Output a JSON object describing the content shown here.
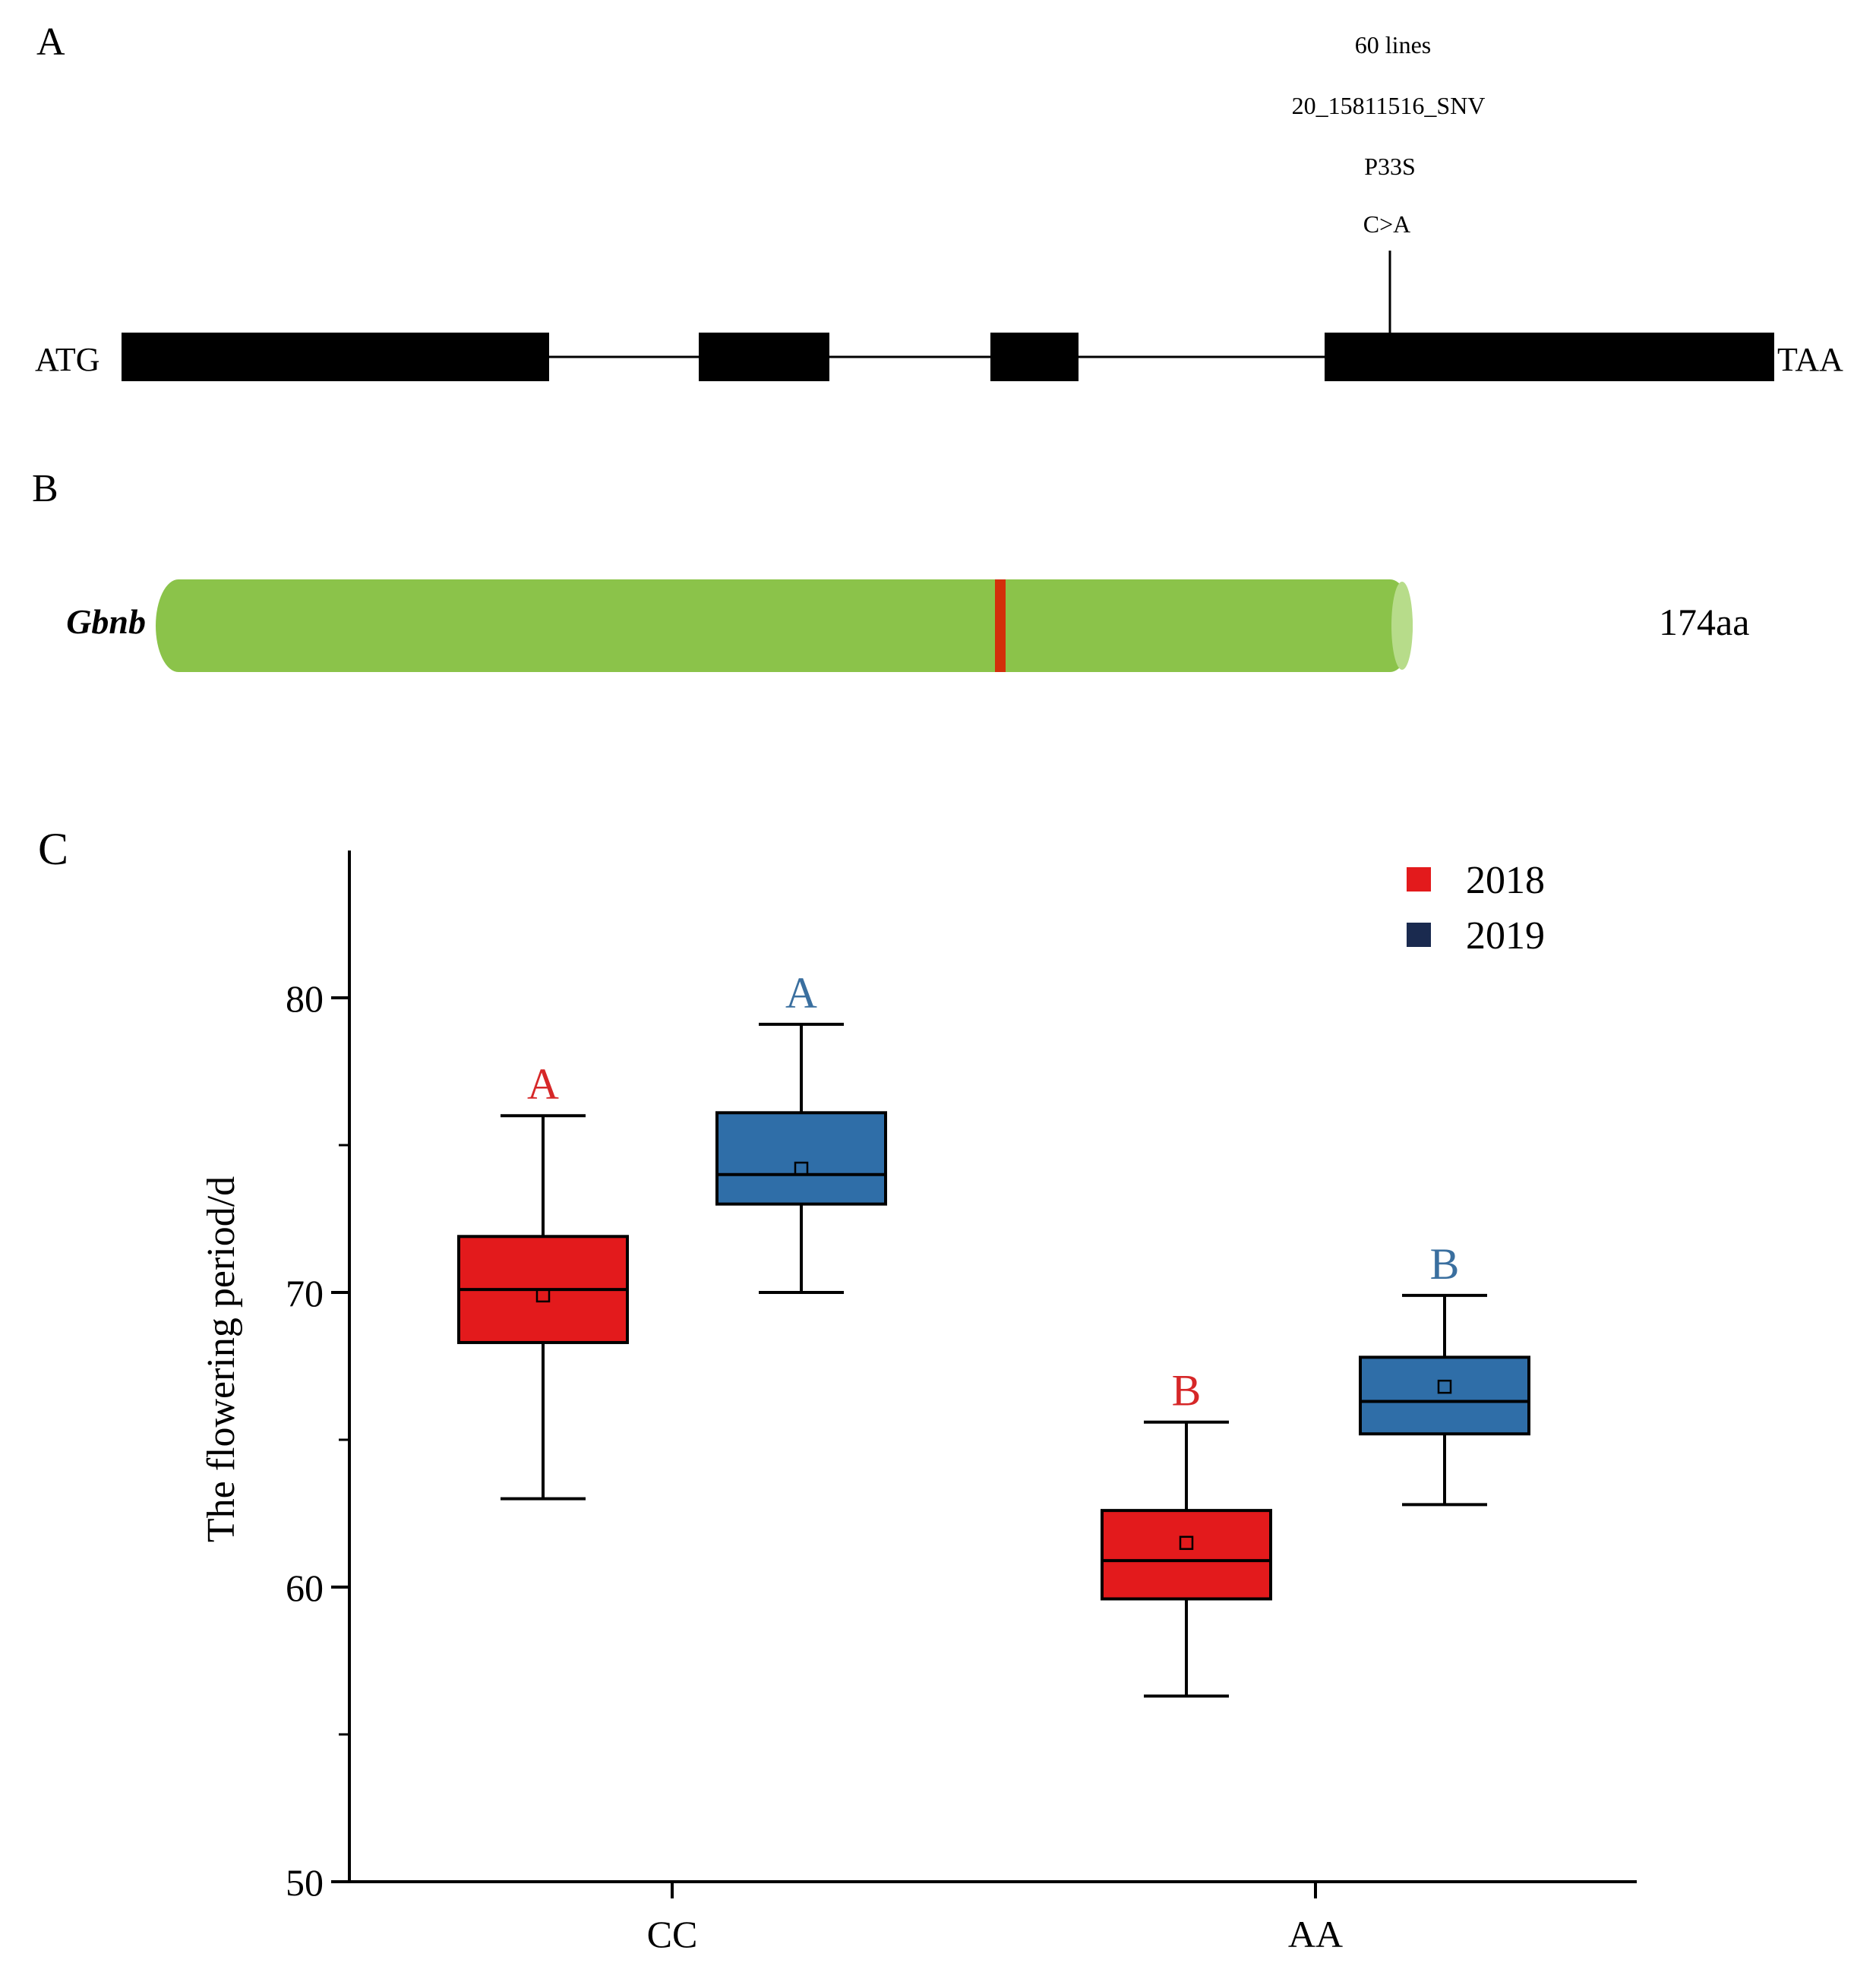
{
  "panel_a": {
    "label": "A",
    "start_codon": "ATG",
    "stop_codon": "TAA",
    "annotation": {
      "lines": "60 lines",
      "snv": "20_15811516_SNV",
      "aa_change": "P33S",
      "nt_change": "C>A"
    },
    "exon_color": "#000000"
  },
  "panel_b": {
    "label": "B",
    "gene": "Gbnb",
    "length": "174aa",
    "bar_color": "#8bc34a",
    "marker_color": "#d32f0a"
  },
  "chart_data": {
    "type": "box",
    "panel_label": "C",
    "title": "",
    "xlabel": "",
    "ylabel": "The flowering period/d",
    "categories": [
      "CC",
      "AA"
    ],
    "ylim": [
      50,
      85
    ],
    "yticks": [
      50,
      60,
      70,
      80
    ],
    "yticks_minor": [
      55,
      65,
      75
    ],
    "legend_position": "top-right",
    "series": [
      {
        "name": "2018",
        "color": "#e31a1c",
        "letter_color": "#d62728",
        "boxes": [
          {
            "category": "CC",
            "min": 63.0,
            "q1": 68.3,
            "median": 70.1,
            "q3": 71.9,
            "max": 76.0,
            "mean": 69.9,
            "letter": "A"
          },
          {
            "category": "AA",
            "min": 56.3,
            "q1": 59.6,
            "median": 60.9,
            "q3": 62.6,
            "max": 65.6,
            "mean": 61.5,
            "letter": "B"
          }
        ]
      },
      {
        "name": "2019",
        "color": "#2f6ea8",
        "letter_color": "#3a6f9f",
        "boxes": [
          {
            "category": "CC",
            "min": 70.0,
            "q1": 73.0,
            "median": 74.0,
            "q3": 76.1,
            "max": 79.1,
            "mean": 74.2,
            "letter": "A"
          },
          {
            "category": "AA",
            "min": 62.8,
            "q1": 65.2,
            "median": 66.3,
            "q3": 67.8,
            "max": 69.9,
            "mean": 66.8,
            "letter": "B"
          }
        ]
      }
    ],
    "legend_swatch_colors": [
      "#e31a1c",
      "#1a2a4f"
    ]
  }
}
